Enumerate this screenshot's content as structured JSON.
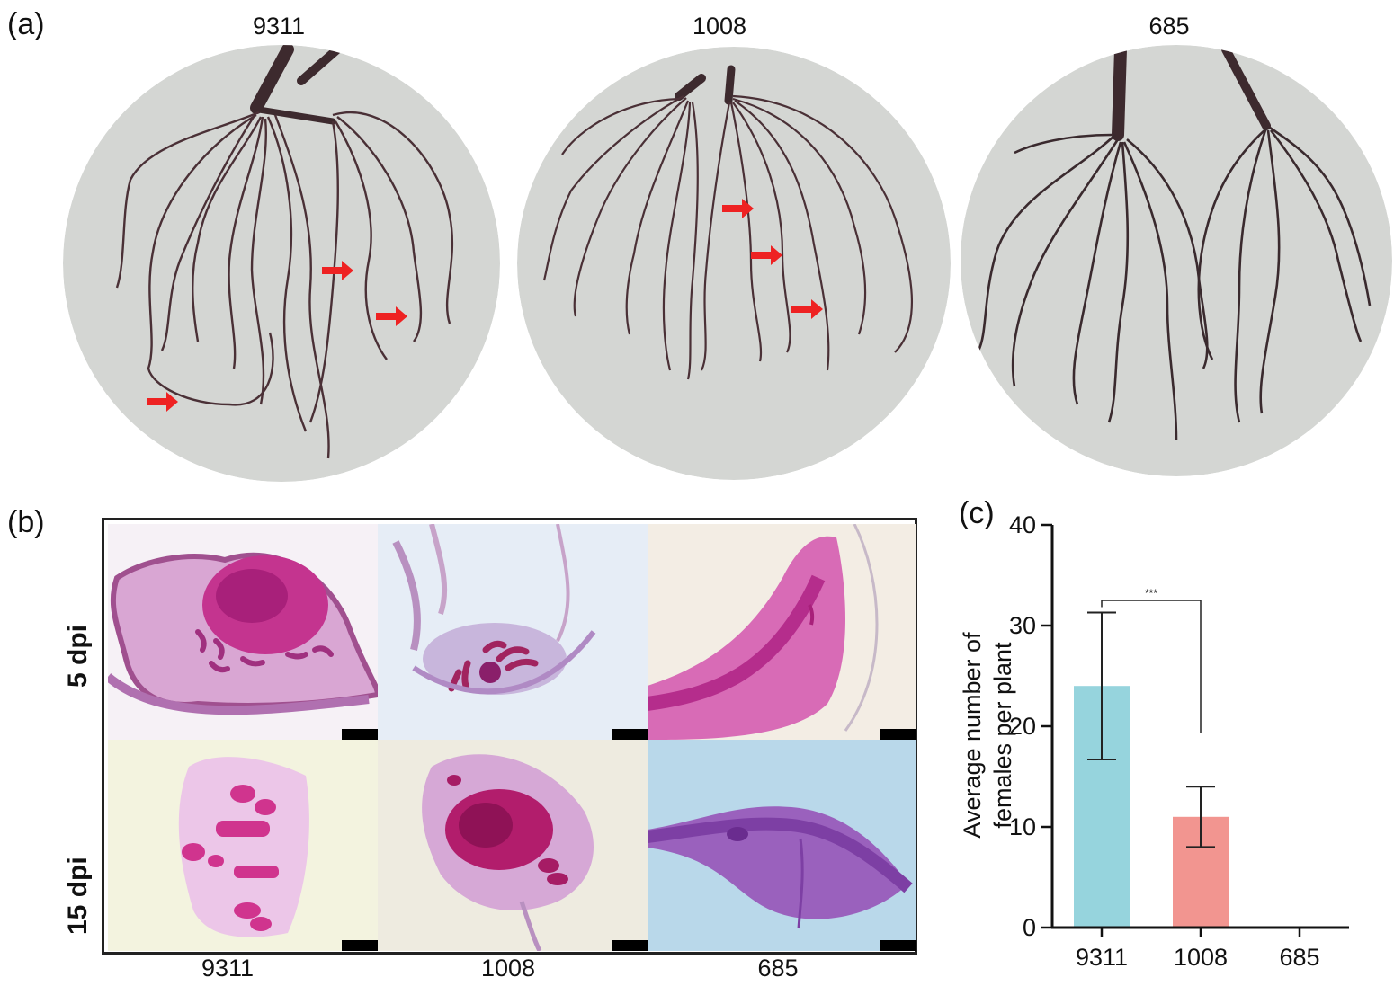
{
  "panel_a": {
    "letter": "(a)",
    "titles": [
      "9311",
      "1008",
      "685"
    ]
  },
  "panel_b": {
    "letter": "(b)",
    "rows": [
      "5 dpi",
      "15 dpi"
    ],
    "columns": [
      "9311",
      "1008",
      "685"
    ]
  },
  "panel_c": {
    "letter": "(c)"
  },
  "colors": {
    "dish": "#d4d6d3",
    "root": "#3d2a2e",
    "arrow": "#ee2222",
    "stain": "#c0308a",
    "bar_9311": "#96d4dd",
    "bar_1008": "#f29590"
  },
  "chart_data": {
    "type": "bar",
    "categories": [
      "9311",
      "1008",
      "685"
    ],
    "values": [
      24,
      11,
      0
    ],
    "errors": [
      7.3,
      3.0,
      0
    ],
    "ylabel": "Average number of females per plant",
    "ylabel_lines": [
      "Average number of",
      "females per plant"
    ],
    "ylim": [
      0,
      40
    ],
    "yticks": [
      0,
      10,
      20,
      30,
      40
    ],
    "significance": {
      "between": [
        "9311",
        "1008"
      ],
      "label": "***"
    },
    "legend": "none",
    "grid": false
  }
}
